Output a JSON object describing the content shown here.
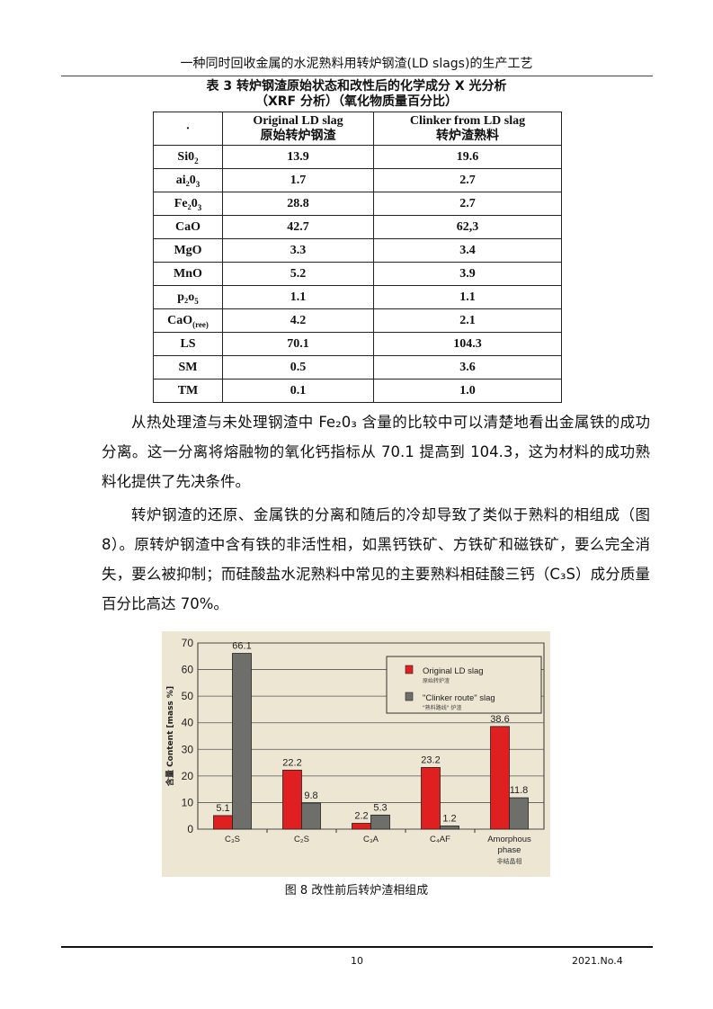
{
  "header": {
    "running_title": "一种同时回收金属的水泥熟料用转炉钢渣(LD slags)的生产工艺"
  },
  "table": {
    "caption_line1": "表 3 转炉钢渣原始状态和改性后的化学成分 X 光分析",
    "caption_line2": "（XRF 分析）（氧化物质量百分比）",
    "corner": "·",
    "col1_en": "Original LD slag",
    "col1_cn": "原始转炉钢渣",
    "col2_en": "Clinker from LD slag",
    "col2_cn": "转炉渣熟料",
    "rows": [
      {
        "base": "Si0",
        "sub": "2",
        "a": "13.9",
        "b": "19.6"
      },
      {
        "base": "ai₂0",
        "sub": "3",
        "a": "1.7",
        "b": "2.7"
      },
      {
        "base": "Fe₂0",
        "sub": "3",
        "a": "28.8",
        "b": "2.7"
      },
      {
        "base": "CaO",
        "sub": "",
        "a": "42.7",
        "b": "62,3"
      },
      {
        "base": "MgO",
        "sub": "",
        "a": "3.3",
        "b": "3.4"
      },
      {
        "base": "MnO",
        "sub": "",
        "a": "5.2",
        "b": "3.9"
      },
      {
        "base": "p₂o",
        "sub": "5",
        "a": "1.1",
        "b": "1.1"
      },
      {
        "base": "CaO",
        "sub": "(ree)",
        "a": "4.2",
        "b": "2.1"
      },
      {
        "base": "LS",
        "sub": "",
        "a": "70.1",
        "b": "104.3"
      },
      {
        "base": "SM",
        "sub": "",
        "a": "0.5",
        "b": "3.6"
      },
      {
        "base": "TM",
        "sub": "",
        "a": "0.1",
        "b": "1.0"
      }
    ]
  },
  "paragraphs": [
    "从热处理渣与未处理钢渣中 Fe₂0₃ 含量的比较中可以清楚地看出金属铁的成功分离。这一分离将熔融物的氧化钙指标从 70.1 提高到 104.3，这为材料的成功熟料化提供了先决条件。",
    "转炉钢渣的还原、金属铁的分离和随后的冷却导致了类似于熟料的相组成（图 8）。原转炉钢渣中含有铁的非活性相，如黑钙铁矿、方铁矿和磁铁矿，要么完全消失，要么被抑制；而硅酸盐水泥熟料中常见的主要熟料相硅酸三钙（C₃S）成分质量百分比高达 70%。"
  ],
  "chart_data": {
    "type": "bar",
    "categories": [
      "C₃S",
      "C₂S",
      "C₃A",
      "C₄AF",
      "Amorphous phase"
    ],
    "category_cn_note": "非结晶相",
    "ylabel": "含量 Content [mass %]",
    "ylim": [
      0,
      70
    ],
    "yticks": [
      0,
      10,
      20,
      30,
      40,
      50,
      60,
      70
    ],
    "grid": true,
    "legend_position": "top-right",
    "series": [
      {
        "name": "Original LD slag",
        "name_cn": "原始转炉渣",
        "color": "#e02020",
        "values": [
          5.1,
          22.2,
          2.2,
          23.2,
          38.6
        ]
      },
      {
        "name": "\"Clinker route\" slag",
        "name_cn": "\"熟料路线\" 炉渣",
        "color": "#6e6e6a",
        "values": [
          66.1,
          9.8,
          5.3,
          1.2,
          11.8
        ]
      }
    ]
  },
  "figure_caption": "图 8 改性前后转炉渣相组成",
  "footer": {
    "page": "10",
    "issue": "2021.No.4"
  }
}
